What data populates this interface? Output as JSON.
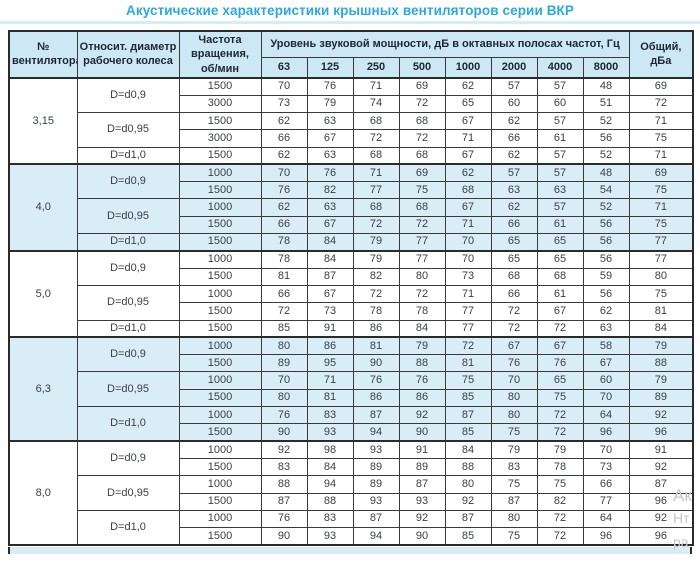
{
  "title": "Акустические характеристики крышных вентиляторов серии ВКР",
  "colors": {
    "title": "#29a9de",
    "header_bg": "#cce8f5",
    "row_shaded_bg": "#d9edf7",
    "top_strip": "#cfe9f6",
    "border": "#3a3a3a",
    "border_dark": "#2b2b2b",
    "watermark": "#c6c6c6"
  },
  "watermark": [
    "Ак",
    "Нт",
    "ра"
  ],
  "table": {
    "headers": {
      "fan_no": "№ вентилятора",
      "diameter": "Относит. диаметр рабочего колеса",
      "speed": "Частота вращения, об/мин",
      "spl_group": "Уровень звуковой мощности, дБ в октавных полосах частот, Гц",
      "frequencies": [
        "63",
        "125",
        "250",
        "500",
        "1000",
        "2000",
        "4000",
        "8000"
      ],
      "total": "Общий, дБа"
    },
    "sections": [
      {
        "fan": "3,15",
        "shaded": false,
        "groups": [
          {
            "diameter": "D=d0,9",
            "rows": [
              {
                "speed": "1500",
                "levels": [
                  70,
                  76,
                  71,
                  69,
                  62,
                  57,
                  57,
                  48
                ],
                "total": 69
              },
              {
                "speed": "3000",
                "levels": [
                  73,
                  79,
                  74,
                  72,
                  65,
                  60,
                  60,
                  51
                ],
                "total": 72
              }
            ]
          },
          {
            "diameter": "D=d0,95",
            "rows": [
              {
                "speed": "1500",
                "levels": [
                  62,
                  63,
                  68,
                  68,
                  67,
                  62,
                  57,
                  52
                ],
                "total": 71
              },
              {
                "speed": "3000",
                "levels": [
                  66,
                  67,
                  72,
                  72,
                  71,
                  66,
                  61,
                  56
                ],
                "total": 75
              }
            ]
          },
          {
            "diameter": "D=d1,0",
            "rows": [
              {
                "speed": "1500",
                "levels": [
                  62,
                  63,
                  68,
                  68,
                  67,
                  62,
                  57,
                  52
                ],
                "total": 71
              }
            ]
          }
        ]
      },
      {
        "fan": "4,0",
        "shaded": true,
        "groups": [
          {
            "diameter": "D=d0,9",
            "rows": [
              {
                "speed": "1000",
                "levels": [
                  70,
                  76,
                  71,
                  69,
                  62,
                  57,
                  57,
                  48
                ],
                "total": 69
              },
              {
                "speed": "1500",
                "levels": [
                  76,
                  82,
                  77,
                  75,
                  68,
                  63,
                  63,
                  54
                ],
                "total": 75
              }
            ]
          },
          {
            "diameter": "D=d0,95",
            "rows": [
              {
                "speed": "1000",
                "levels": [
                  62,
                  63,
                  68,
                  68,
                  67,
                  62,
                  57,
                  52
                ],
                "total": 71
              },
              {
                "speed": "1500",
                "levels": [
                  66,
                  67,
                  72,
                  72,
                  71,
                  66,
                  61,
                  56
                ],
                "total": 75
              }
            ]
          },
          {
            "diameter": "D=d1,0",
            "rows": [
              {
                "speed": "1500",
                "levels": [
                  78,
                  84,
                  79,
                  77,
                  70,
                  65,
                  65,
                  56
                ],
                "total": 77
              }
            ]
          }
        ]
      },
      {
        "fan": "5,0",
        "shaded": false,
        "groups": [
          {
            "diameter": "D=d0,9",
            "rows": [
              {
                "speed": "1000",
                "levels": [
                  78,
                  84,
                  79,
                  77,
                  70,
                  65,
                  65,
                  56
                ],
                "total": 77
              },
              {
                "speed": "1500",
                "levels": [
                  81,
                  87,
                  82,
                  80,
                  73,
                  68,
                  68,
                  59
                ],
                "total": 80
              }
            ]
          },
          {
            "diameter": "D=d0,95",
            "rows": [
              {
                "speed": "1000",
                "levels": [
                  66,
                  67,
                  72,
                  72,
                  71,
                  66,
                  61,
                  56
                ],
                "total": 75
              },
              {
                "speed": "1500",
                "levels": [
                  72,
                  73,
                  78,
                  78,
                  77,
                  72,
                  67,
                  62
                ],
                "total": 81
              }
            ]
          },
          {
            "diameter": "D=d1,0",
            "rows": [
              {
                "speed": "1500",
                "levels": [
                  85,
                  91,
                  86,
                  84,
                  77,
                  72,
                  72,
                  63
                ],
                "total": 84
              }
            ]
          }
        ]
      },
      {
        "fan": "6,3",
        "shaded": true,
        "groups": [
          {
            "diameter": "D=d0,9",
            "rows": [
              {
                "speed": "1000",
                "levels": [
                  80,
                  86,
                  81,
                  79,
                  72,
                  67,
                  67,
                  58
                ],
                "total": 79
              },
              {
                "speed": "1500",
                "levels": [
                  89,
                  95,
                  90,
                  88,
                  81,
                  76,
                  76,
                  67
                ],
                "total": 88
              }
            ]
          },
          {
            "diameter": "D=d0,95",
            "rows": [
              {
                "speed": "1000",
                "levels": [
                  70,
                  71,
                  76,
                  76,
                  75,
                  70,
                  65,
                  60
                ],
                "total": 79
              },
              {
                "speed": "1500",
                "levels": [
                  80,
                  81,
                  86,
                  86,
                  85,
                  80,
                  75,
                  70
                ],
                "total": 89
              }
            ]
          },
          {
            "diameter": "D=d1,0",
            "rows": [
              {
                "speed": "1000",
                "levels": [
                  76,
                  83,
                  87,
                  92,
                  87,
                  80,
                  72,
                  64
                ],
                "total": 92
              },
              {
                "speed": "1500",
                "levels": [
                  90,
                  93,
                  94,
                  90,
                  85,
                  75,
                  72,
                  96
                ],
                "total": 96
              }
            ]
          }
        ]
      },
      {
        "fan": "8,0",
        "shaded": false,
        "groups": [
          {
            "diameter": "D=d0,9",
            "rows": [
              {
                "speed": "1000",
                "levels": [
                  92,
                  98,
                  93,
                  91,
                  84,
                  79,
                  79,
                  70
                ],
                "total": 91
              },
              {
                "speed": "1500",
                "levels": [
                  83,
                  84,
                  89,
                  89,
                  88,
                  83,
                  78,
                  73
                ],
                "total": 92
              }
            ]
          },
          {
            "diameter": "D=d0,95",
            "rows": [
              {
                "speed": "1000",
                "levels": [
                  88,
                  94,
                  89,
                  87,
                  80,
                  75,
                  75,
                  66
                ],
                "total": 87
              },
              {
                "speed": "1500",
                "levels": [
                  87,
                  88,
                  93,
                  93,
                  92,
                  87,
                  82,
                  77
                ],
                "total": 96
              }
            ]
          },
          {
            "diameter": "D=d1,0",
            "rows": [
              {
                "speed": "1000",
                "levels": [
                  76,
                  83,
                  87,
                  92,
                  87,
                  80,
                  72,
                  64
                ],
                "total": 92
              },
              {
                "speed": "1500",
                "levels": [
                  90,
                  93,
                  94,
                  90,
                  85,
                  75,
                  72,
                  96
                ],
                "total": 96
              }
            ]
          }
        ]
      }
    ]
  }
}
